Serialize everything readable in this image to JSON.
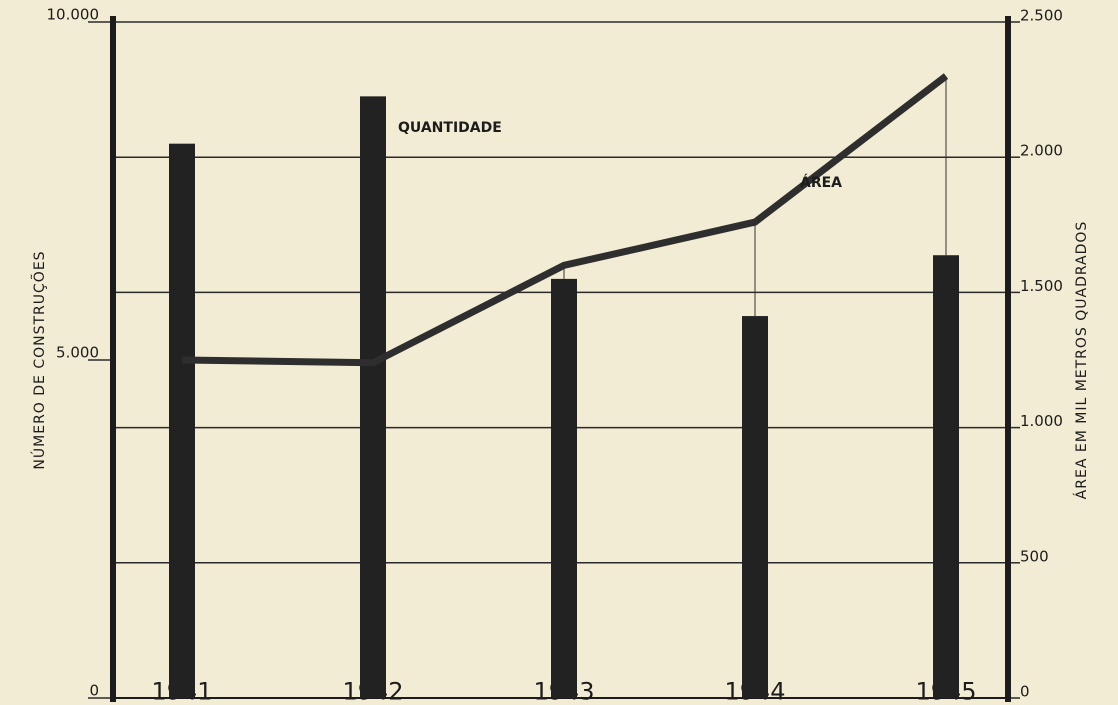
{
  "chart_data": {
    "type": "bar+line",
    "categories": [
      "1941",
      "1942",
      "1943",
      "1944",
      "1945"
    ],
    "y_label": "NÚMERO DE CONSTRUÇÕES",
    "y2_label": "ÁREA EM MIL METROS QUADRADOS",
    "ylim": [
      0,
      10000
    ],
    "yticks": [
      0,
      {
        "value": 5000,
        "label": "5.000"
      },
      {
        "value": 10000,
        "label": "10.000"
      }
    ],
    "y2lim": [
      0,
      2500
    ],
    "y2ticks": [
      0,
      500,
      {
        "value": 1000,
        "label": "1.000"
      },
      {
        "value": 1500,
        "label": "1.500"
      },
      {
        "value": 2000,
        "label": "2.000"
      },
      {
        "value": 2500,
        "label": "2.500"
      }
    ],
    "grid": true,
    "series": [
      {
        "name": "QUANTIDADE",
        "type": "bar",
        "color": "#222222",
        "values": [
          8200,
          8900,
          6200,
          5650,
          6550
        ]
      },
      {
        "name": "ÁREA",
        "type": "line",
        "axis": "y2",
        "color": "#2e2e2e",
        "values": [
          1250,
          1240,
          1600,
          1760,
          2300
        ]
      }
    ]
  }
}
